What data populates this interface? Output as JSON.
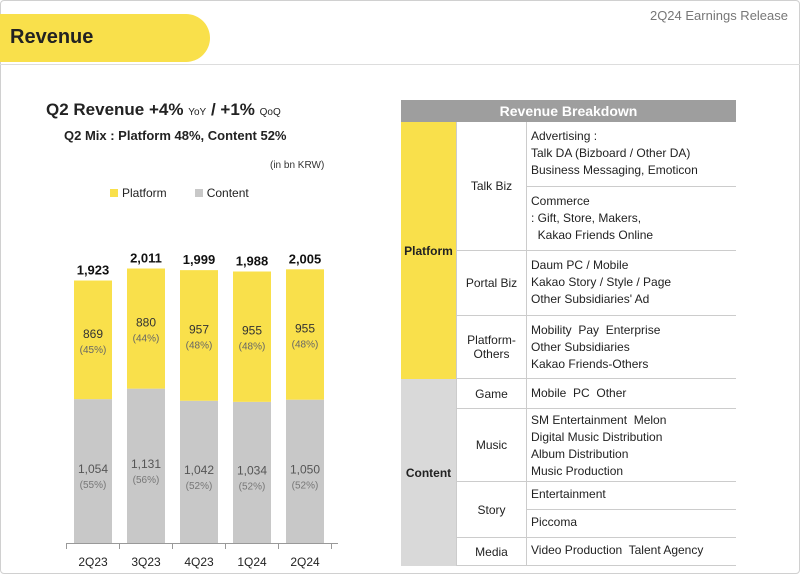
{
  "header": {
    "release": "2Q24 Earnings Release",
    "title": "Revenue"
  },
  "headline": {
    "main": "Q2 Revenue  +4%",
    "yoy": "YoY",
    "sep": "/ +1%",
    "qoq": "QoQ",
    "mix": "Q2 Mix : Platform 48%, Content 52%"
  },
  "unit": "(in bn KRW)",
  "colors": {
    "platform": "#f9e04b",
    "content": "#c8c8c8",
    "accent": "#f9e04b"
  },
  "chart_data": {
    "type": "bar",
    "stacked": true,
    "categories": [
      "2Q23",
      "3Q23",
      "4Q23",
      "1Q24",
      "2Q24"
    ],
    "totals": [
      "1,923",
      "2,011",
      "1,999",
      "1,988",
      "2,005"
    ],
    "series": [
      {
        "name": "Content",
        "values": [
          1054,
          1131,
          1042,
          1034,
          1050
        ],
        "labels": [
          "1,054",
          "1,131",
          "1,042",
          "1,034",
          "1,050"
        ],
        "pct": [
          "(55%)",
          "(56%)",
          "(52%)",
          "(52%)",
          "(52%)"
        ]
      },
      {
        "name": "Platform",
        "values": [
          869,
          880,
          957,
          955,
          955
        ],
        "labels": [
          "869",
          "880",
          "957",
          "955",
          "955"
        ],
        "pct": [
          "(45%)",
          "(44%)",
          "(48%)",
          "(48%)",
          "(48%)"
        ]
      }
    ],
    "legend": [
      "Platform",
      "Content"
    ]
  },
  "breakdown": {
    "title": "Revenue Breakdown",
    "platform": {
      "label": "Platform",
      "talk_biz": {
        "label": "Talk Biz",
        "advertising": [
          "Advertising :",
          "Talk DA (Bizboard / Other DA)",
          "Business Messaging, Emoticon"
        ],
        "commerce": [
          "Commerce",
          ": Gift, Store, Makers,",
          "  Kakao Friends Online"
        ]
      },
      "portal_biz": {
        "label": "Portal Biz",
        "lines": [
          "Daum PC / Mobile",
          "Kakao Story / Style / Page",
          "Other Subsidiaries' Ad"
        ]
      },
      "platform_others": {
        "label1": "Platform-",
        "label2": "Others",
        "lines": [
          "Mobility  Pay  Enterprise",
          "Other Subsidiaries",
          "Kakao Friends-Others"
        ]
      }
    },
    "content": {
      "label": "Content",
      "game": {
        "label": "Game",
        "lines": [
          "Mobile  PC  Other"
        ]
      },
      "music": {
        "label": "Music",
        "lines": [
          "SM Entertainment  Melon",
          "Digital Music Distribution",
          "Album Distribution",
          "Music Production"
        ]
      },
      "story": {
        "label": "Story",
        "entertainment": "Entertainment",
        "piccoma": "Piccoma"
      },
      "media": {
        "label": "Media",
        "lines": [
          "Video Production  Talent Agency"
        ]
      }
    }
  }
}
